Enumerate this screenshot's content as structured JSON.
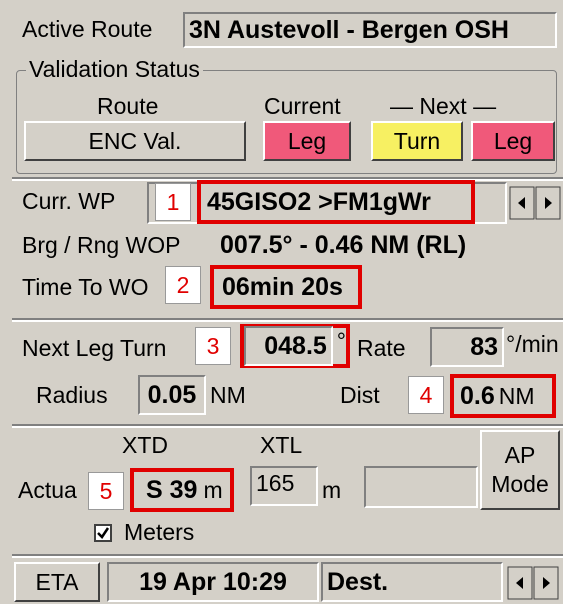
{
  "active_route": {
    "label": "Active Route",
    "value": "3N Austevoll - Bergen OSH"
  },
  "validation": {
    "title": "Validation Status",
    "route_label": "Route",
    "current_label": "Current",
    "next_label": "— Next —",
    "route_button": "ENC Val.",
    "current_button": "Leg",
    "next_turn_button": "Turn",
    "next_leg_button": "Leg"
  },
  "waypoint": {
    "curr_wp_label": "Curr. WP",
    "curr_wp": "45GISO2 >FM1gWr",
    "brg_rng_label": "Brg / Rng WOP",
    "brg_rng": "007.5° - 0.46 NM (RL)",
    "time_label": "Time To WO",
    "time": "06min 20s"
  },
  "turn": {
    "label": "Next Leg Turn",
    "value": "048.5",
    "unit": "°",
    "rate_label": "Rate",
    "rate": "83",
    "rate_unit": "°/min",
    "radius_label": "Radius",
    "radius": "0.05",
    "radius_unit": "NM",
    "dist_label": "Dist",
    "dist": "0.6",
    "dist_unit": "NM"
  },
  "cross_track": {
    "xtd_label": "XTD",
    "xtl_label": "XTL",
    "ap_mode": "AP Mode",
    "actual_label": "Actua",
    "xtd": "S 39",
    "xtd_unit": "m",
    "xtl": "165",
    "xtl_unit": "m",
    "meters_label": "Meters"
  },
  "footer": {
    "eta_button": "ETA",
    "eta": "19 Apr 10:29",
    "dest": "Dest."
  },
  "annotations": [
    "1",
    "2",
    "3",
    "4",
    "5"
  ]
}
